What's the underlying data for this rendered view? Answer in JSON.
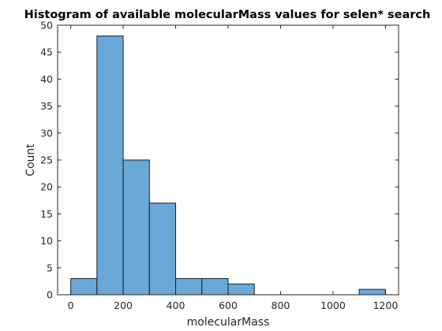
{
  "chart_data": {
    "type": "bar",
    "title": "Histogram of available molecularMass values for selen* search",
    "xlabel": "molecularMass",
    "ylabel": "Count",
    "bin_edges": [
      0,
      100,
      200,
      300,
      400,
      500,
      600,
      700,
      800,
      900,
      1000,
      1100,
      1200
    ],
    "values": [
      3,
      48,
      25,
      17,
      3,
      3,
      2,
      0,
      0,
      0,
      0,
      1
    ],
    "xlim": [
      -50,
      1250
    ],
    "ylim": [
      0,
      50
    ],
    "xticks": [
      0,
      200,
      400,
      600,
      800,
      1000,
      1200
    ],
    "yticks": [
      0,
      5,
      10,
      15,
      20,
      25,
      30,
      35,
      40,
      45,
      50
    ],
    "grid": false,
    "colors": {
      "bar_fill": "#6aa8d8",
      "bar_edge": "#1e1e1e",
      "axis": "#262626"
    }
  }
}
